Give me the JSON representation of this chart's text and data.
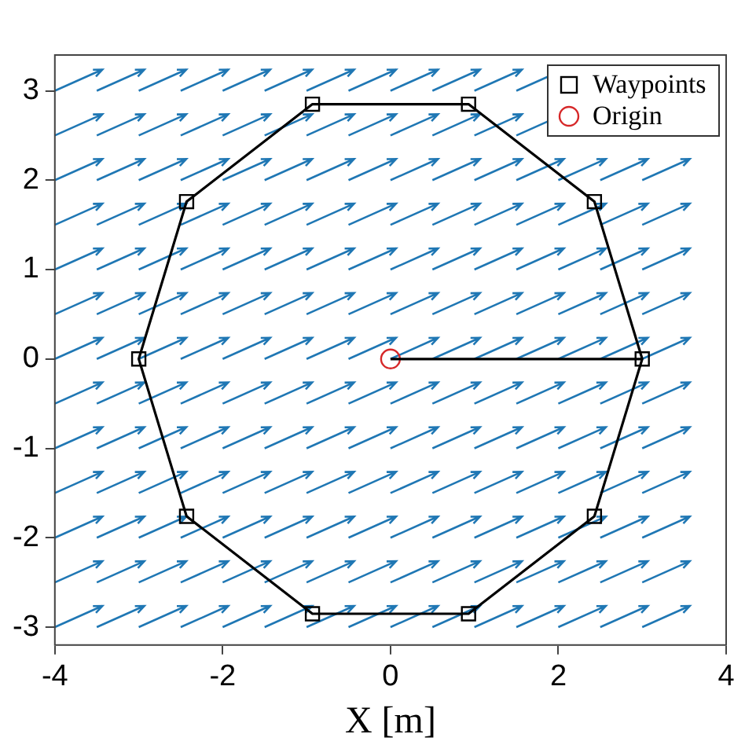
{
  "chart_data": {
    "type": "scatter",
    "xlabel": "X [m]",
    "xlim": [
      -4,
      4
    ],
    "xticks": [
      -4,
      -2,
      0,
      2,
      4
    ],
    "ylim": [
      -3.2,
      3.4
    ],
    "yticks": [
      -3,
      -2,
      -1,
      0,
      1,
      2,
      3
    ],
    "grid": false,
    "legend": "top right",
    "series": [
      {
        "type": "line",
        "color": "#000000",
        "marker": "none",
        "x": [
          0,
          3,
          2.43,
          0.93,
          -0.93,
          -2.43,
          -3,
          -2.43,
          -0.93,
          0.93,
          2.43,
          3
        ],
        "values": [
          0,
          0,
          1.76,
          2.85,
          2.85,
          1.76,
          0,
          -1.76,
          -2.85,
          -2.85,
          -1.76,
          0
        ]
      },
      {
        "name": "Waypoints",
        "color": "#000000",
        "marker": "square",
        "x": [
          3,
          2.43,
          0.93,
          -0.93,
          -2.43,
          -3,
          -2.43,
          -0.93,
          0.93,
          2.43
        ],
        "values": [
          0,
          1.76,
          2.85,
          2.85,
          1.76,
          0,
          -1.76,
          -2.85,
          -2.85,
          -1.76
        ]
      },
      {
        "name": "Origin",
        "color": "#d62728",
        "marker": "circle",
        "x": [
          0
        ],
        "values": [
          0
        ]
      }
    ]
  }
}
